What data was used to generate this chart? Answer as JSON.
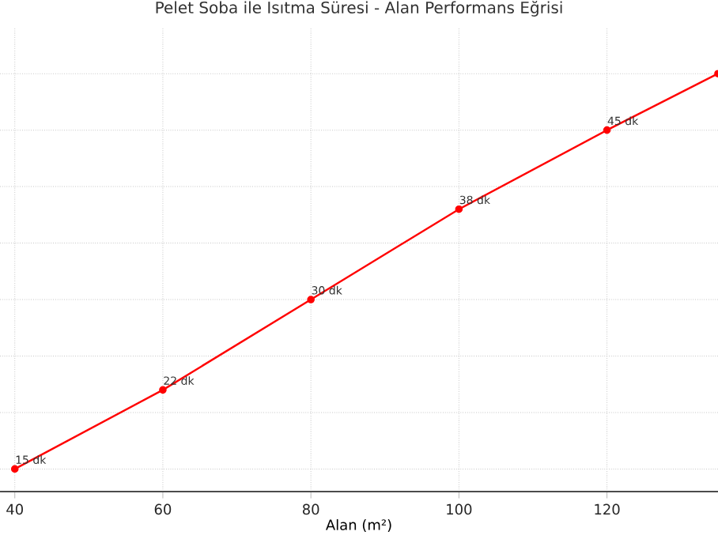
{
  "chart_data": {
    "type": "line",
    "title": "Pelet Soba ile Isıtma Süresi - Alan Performans Eğrisi",
    "xlabel": "Alan (m²)",
    "x": [
      40,
      60,
      80,
      100,
      120,
      135
    ],
    "series": [
      {
        "color": "#ff0000",
        "values": [
          15,
          22,
          30,
          38,
          45,
          50
        ],
        "value_labels": [
          "15 dk",
          "22 dk",
          "30 dk",
          "38 dk",
          "45 dk",
          null
        ]
      }
    ],
    "xlim": [
      38,
      135
    ],
    "xticks": [
      40,
      60,
      80,
      100,
      120
    ],
    "ylim": [
      13,
      54
    ],
    "yticks": [
      {
        "value": 15,
        "label": null
      },
      {
        "value": 20,
        "label": null
      },
      {
        "value": 25,
        "label": null
      },
      {
        "value": 30,
        "label": null
      },
      {
        "value": 35,
        "label": null
      },
      {
        "value": 40,
        "label": null
      },
      {
        "value": 45,
        "label": null
      },
      {
        "value": 50,
        "label": null
      }
    ],
    "tick_labels": "x",
    "grid": true,
    "marker": "circle",
    "line_style": "solid"
  }
}
